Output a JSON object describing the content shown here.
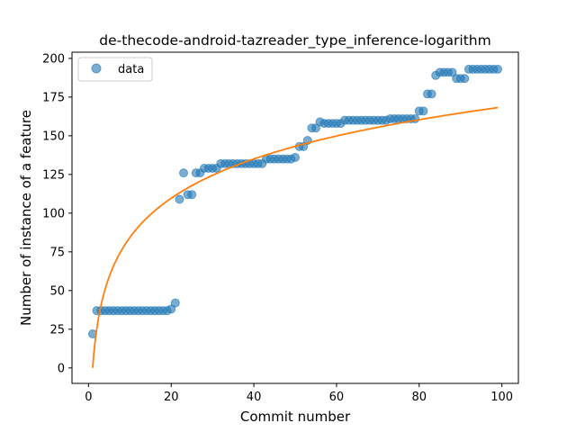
{
  "chart_data": {
    "type": "scatter",
    "title": "de-thecode-android-tazreader_type_inference-logarithm",
    "xlabel": "Commit number",
    "ylabel": "Number of instance of a feature",
    "xlim": [
      -4,
      104
    ],
    "ylim": [
      -10,
      204
    ],
    "xticks": [
      0,
      20,
      40,
      60,
      80,
      100
    ],
    "yticks": [
      0,
      25,
      50,
      75,
      100,
      125,
      150,
      175,
      200
    ],
    "legend": {
      "position": "upper-left",
      "entries": [
        "data"
      ]
    },
    "colors": {
      "scatter": "#1f77b4",
      "fit": "#ff7f0e"
    },
    "series": [
      {
        "name": "data",
        "kind": "scatter",
        "x": [
          1,
          2,
          3,
          4,
          5,
          6,
          7,
          8,
          9,
          10,
          11,
          12,
          13,
          14,
          15,
          16,
          17,
          18,
          19,
          20,
          21,
          22,
          23,
          24,
          25,
          26,
          27,
          28,
          29,
          30,
          31,
          32,
          33,
          34,
          35,
          36,
          37,
          38,
          39,
          40,
          41,
          42,
          43,
          44,
          45,
          46,
          47,
          48,
          49,
          50,
          51,
          52,
          53,
          54,
          55,
          56,
          57,
          58,
          59,
          60,
          61,
          62,
          63,
          64,
          65,
          66,
          67,
          68,
          69,
          70,
          71,
          72,
          73,
          74,
          75,
          76,
          77,
          78,
          79,
          80,
          81,
          82,
          83,
          84,
          85,
          86,
          87,
          88,
          89,
          90,
          91,
          92,
          93,
          94,
          95,
          96,
          97,
          98,
          99
        ],
        "y": [
          22,
          37,
          37,
          37,
          37,
          37,
          37,
          37,
          37,
          37,
          37,
          37,
          37,
          37,
          37,
          37,
          37,
          37,
          37,
          38,
          42,
          109,
          126,
          112,
          112,
          126,
          126,
          129,
          129,
          129,
          129,
          132,
          132,
          132,
          132,
          132,
          132,
          132,
          132,
          132,
          132,
          132,
          135,
          135,
          135,
          135,
          135,
          135,
          135,
          136,
          143,
          143,
          147,
          155,
          155,
          159,
          158,
          158,
          158,
          158,
          158,
          160,
          160,
          160,
          160,
          160,
          160,
          160,
          160,
          160,
          160,
          160,
          161,
          161,
          161,
          161,
          161,
          161,
          161,
          166,
          166,
          177,
          177,
          189,
          191,
          191,
          191,
          191,
          187,
          187,
          187,
          193,
          193,
          193,
          193,
          193,
          193,
          193,
          193
        ]
      }
    ],
    "fit": {
      "kind": "logarithm",
      "a": 36.6,
      "b": 0,
      "x_range": [
        1,
        99
      ]
    }
  }
}
